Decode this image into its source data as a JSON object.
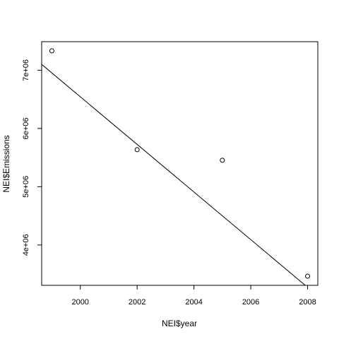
{
  "chart_data": {
    "type": "scatter",
    "xlabel": "NEI$year",
    "ylabel": "NEI$Emissions",
    "x": [
      1999,
      2002,
      2005,
      2008
    ],
    "y": [
      7332967,
      5635780,
      5454703,
      3464206
    ],
    "xlim": [
      1998.64,
      2008.36
    ],
    "ylim": [
      3307174,
      7490000
    ],
    "xticks": [
      2000,
      2002,
      2004,
      2006,
      2008
    ],
    "xtick_labels": [
      "2000",
      "2002",
      "2004",
      "2006",
      "2008"
    ],
    "yticks": [
      4000000,
      5000000,
      6000000,
      7000000
    ],
    "ytick_labels": [
      "4e+06",
      "5e+06",
      "6e+06",
      "7e+06"
    ],
    "fit_line": {
      "intercept": 824041810,
      "slope": -408749
    },
    "grid": false,
    "legend": "none",
    "colors": {
      "points": "#000000",
      "line": "#000000",
      "background": "#ffffff"
    }
  }
}
